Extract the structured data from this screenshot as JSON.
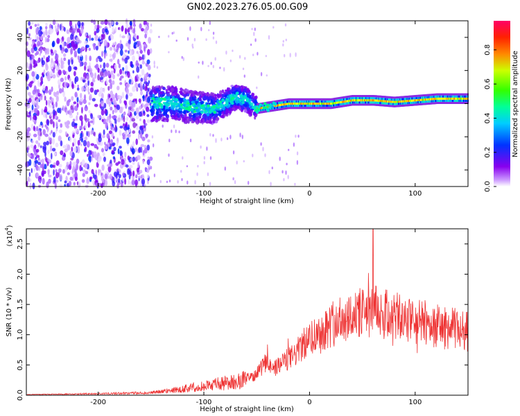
{
  "title": "GN02.2023.276.05.00.G09",
  "colors": {
    "snr_line": "#ee3333",
    "axes": "#000000"
  },
  "chart_data": [
    {
      "type": "heatmap",
      "xlabel": "Height of straight line (km)",
      "ylabel": "Frequency (Hz)",
      "xlim": [
        -268,
        150
      ],
      "ylim": [
        -50,
        50
      ],
      "xticks": [
        -200,
        -100,
        0,
        100
      ],
      "yticks": [
        -40,
        -20,
        0,
        20,
        40
      ],
      "colorbar": {
        "label": "Normalized spectral amplitude",
        "range": [
          0,
          1
        ],
        "ticks": [
          "0.0",
          "0.2",
          "0.4",
          "0.6",
          "0.8"
        ],
        "colormap": "rainbow (white-purple-blue-cyan-green-yellow-red-magenta)"
      },
      "features": {
        "noise_region_x": [
          -268,
          -150
        ],
        "dense_band_x": [
          -150,
          -50
        ],
        "ridge_center_freq_hz": [
          [
            -150,
            0
          ],
          [
            -130,
            0
          ],
          [
            -110,
            -2
          ],
          [
            -90,
            -3
          ],
          [
            -70,
            4
          ],
          [
            -60,
            3
          ],
          [
            -50,
            -3
          ],
          [
            -40,
            -2
          ],
          [
            -30,
            -1
          ],
          [
            -20,
            0
          ],
          [
            0,
            0
          ],
          [
            20,
            0
          ],
          [
            40,
            2
          ],
          [
            60,
            2
          ],
          [
            80,
            1
          ],
          [
            100,
            2
          ],
          [
            120,
            3
          ],
          [
            150,
            3
          ]
        ]
      }
    },
    {
      "type": "line",
      "xlabel": "Height of straight line (km)",
      "ylabel": "SNR (10 * v/v)",
      "y_multiplier_label": "(x10",
      "y_multiplier_exp": "4",
      "xlim": [
        -268,
        150
      ],
      "ylim": [
        0,
        2.75
      ],
      "xticks": [
        -200,
        -100,
        0,
        100
      ],
      "yticks": [
        "0.0",
        "0.5",
        "1.0",
        "1.5",
        "2.0",
        "2.5"
      ],
      "envelope": [
        [
          -268,
          0.01
        ],
        [
          -220,
          0.02
        ],
        [
          -180,
          0.03
        ],
        [
          -150,
          0.04
        ],
        [
          -130,
          0.08
        ],
        [
          -110,
          0.13
        ],
        [
          -90,
          0.18
        ],
        [
          -70,
          0.22
        ],
        [
          -55,
          0.3
        ],
        [
          -45,
          0.45
        ],
        [
          -40,
          0.6
        ],
        [
          -35,
          0.4
        ],
        [
          -25,
          0.55
        ],
        [
          -15,
          0.65
        ],
        [
          -5,
          0.85
        ],
        [
          5,
          1.0
        ],
        [
          15,
          1.1
        ],
        [
          25,
          1.2
        ],
        [
          35,
          1.3
        ],
        [
          45,
          1.35
        ],
        [
          55,
          1.35
        ],
        [
          60,
          1.4
        ],
        [
          70,
          1.35
        ],
        [
          80,
          1.3
        ],
        [
          90,
          1.25
        ],
        [
          100,
          1.2
        ],
        [
          110,
          1.2
        ],
        [
          120,
          1.15
        ],
        [
          130,
          1.1
        ],
        [
          140,
          1.1
        ],
        [
          150,
          1.05
        ]
      ],
      "peak": [
        60,
        2.75
      ]
    }
  ]
}
